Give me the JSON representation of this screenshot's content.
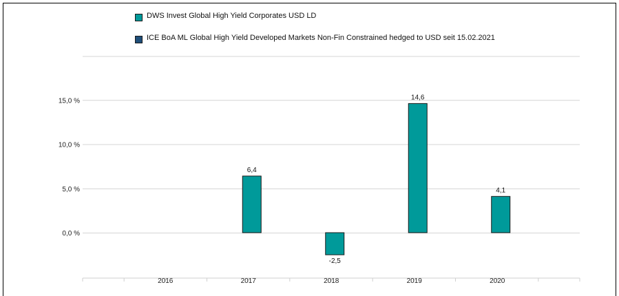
{
  "chart_data": {
    "type": "bar",
    "categories": [
      "2016",
      "2017",
      "2018",
      "2019",
      "2020"
    ],
    "series": [
      {
        "name": "DWS Invest Global High Yield Corporates  USD LD",
        "color": "#009a9a",
        "values": [
          null,
          6.4,
          -2.5,
          14.6,
          4.1
        ],
        "value_labels": [
          "",
          "6,4",
          "-2,5",
          "14,6",
          "4,1"
        ]
      },
      {
        "name": "ICE BoA ML Global High Yield Developed Markets Non-Fin Constrained hedged to USD seit 15.02.2021",
        "color": "#1f4e79",
        "values": [
          null,
          null,
          null,
          null,
          null
        ],
        "value_labels": [
          "",
          "",
          "",
          "",
          ""
        ]
      }
    ],
    "yticks": [
      0,
      5,
      10,
      15
    ],
    "ytick_labels": [
      "0,0 %",
      "5,0 %",
      "10,0 %",
      "15,0 %"
    ],
    "ylim": [
      -5,
      20
    ],
    "grid": true,
    "legend_position": "top"
  }
}
